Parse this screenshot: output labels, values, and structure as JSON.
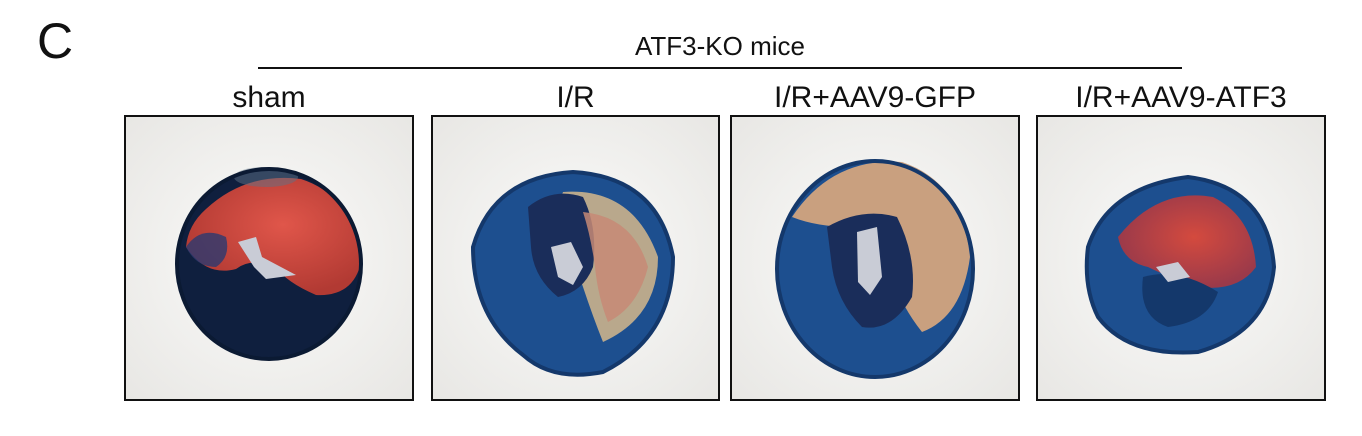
{
  "figure": {
    "panel_letter": "C",
    "group_label": "ATF3-KO mice",
    "conditions": [
      "sham",
      "I/R",
      "I/R+AAV9-GFP",
      "I/R+AAV9-ATF3"
    ]
  },
  "colors": {
    "background": "#f2f1ef",
    "viable_red": "#d44a3e",
    "blue_stain": "#1d4f8f",
    "dark_blue": "#10244a",
    "pale_infarct": "#b9bc9f",
    "lumen": "#c9ccd6"
  }
}
